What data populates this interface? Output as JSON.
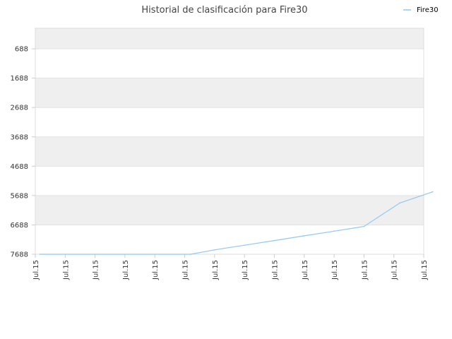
{
  "chart_data": {
    "type": "line",
    "title": "Historial de clasificación para Fire30",
    "xlabel": "",
    "ylabel": "",
    "y_inverted": true,
    "ylim": [
      -12,
      7688
    ],
    "y_ticks": [
      688,
      1688,
      2688,
      3688,
      4688,
      5688,
      6688,
      7688
    ],
    "x_tick_labels": [
      "Jul.15",
      "Jul.15",
      "Jul.15",
      "Jul.15",
      "Jul.15",
      "Jul.15",
      "Jul.15",
      "Jul.15",
      "Jul.15",
      "Jul.15",
      "Jul.15",
      "Jul.15",
      "Jul.15",
      "Jul.15"
    ],
    "legend": {
      "position": "top-right"
    },
    "grid": true,
    "series": [
      {
        "name": "Fire30",
        "color": "#90c8f5",
        "x": [
          0.15,
          5.2,
          6.0,
          7.0,
          8.0,
          9.0,
          10.0,
          11.0,
          12.2,
          13.3
        ],
        "values": [
          7688,
          7688,
          7540,
          7380,
          7220,
          7060,
          6900,
          6740,
          5940,
          5560
        ]
      }
    ]
  }
}
